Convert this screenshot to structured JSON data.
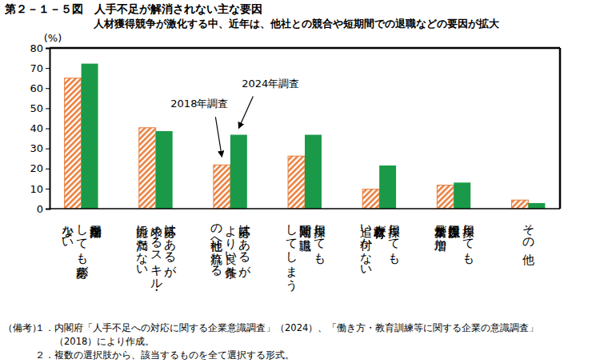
{
  "chart_data": {
    "type": "bar",
    "title": "第２－１－５図　人手不足が解消されない主な要因",
    "subtitle": "人材獲得競争が激化する中、近年は、他社との競合や短期間での退職などの要因が拡大",
    "y_label": "(%)",
    "categories": [
      "採用活動を\nしても応募が\n少ない",
      "応募はあるが、\n求めるスキル・\n能力に満たない",
      "応募はあるが、\nより良い条件\nの他社へ流れる",
      "採用しても\n短期間で退職\nしてしまう",
      "採用しても\n人材教育が\n追い付かない",
      "採用しても\n採用数以上に\n業務量が増加",
      "その他"
    ],
    "series": [
      {
        "name": "2018年調査",
        "color": "#e8803e",
        "values": [
          65,
          40.3,
          21.8,
          26.2,
          9.7,
          11.7,
          4.3
        ]
      },
      {
        "name": "2024年調査",
        "color": "#1a9a48",
        "values": [
          72.2,
          38.6,
          36.8,
          36.8,
          21.5,
          13,
          2.8
        ]
      }
    ],
    "ylim": [
      0,
      80
    ],
    "yticks": [
      0,
      10,
      20,
      30,
      40,
      50,
      60,
      70,
      80
    ],
    "grid": false,
    "notes_label": "（備考）",
    "notes": [
      [
        "１．内閣府「人手不足への対応に関する企業意識調査」（2024）、「働き方・教育訓練等に関する企業の意識調査」",
        "（2018）により作成。"
      ],
      [
        "２．複数の選択肢から、該当するものを全て選択する形式。"
      ]
    ]
  }
}
